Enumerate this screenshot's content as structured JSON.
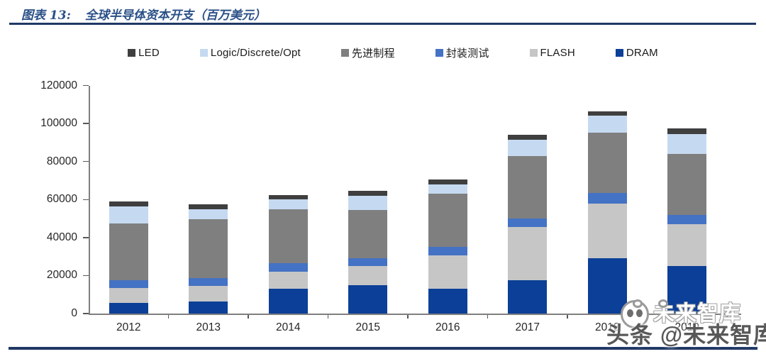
{
  "header": {
    "figure_label": "图表 13:",
    "title": "全球半导体资本开支（百万美元）"
  },
  "watermark": {
    "main_text": "头条 @未来智库",
    "ghost_text": "未来智库",
    "logo": "panda-avatar-icon",
    "text_color": "#585858"
  },
  "colors": {
    "rule": "#1f3864",
    "title_text": "#2a5087",
    "axis": "#7f7f7f",
    "label_text": "#262626"
  },
  "chart_data": {
    "type": "bar",
    "stacked": true,
    "title": "全球半导体资本开支（百万美元）",
    "xlabel": "",
    "ylabel": "",
    "categories": [
      "2012",
      "2013",
      "2014",
      "2015",
      "2016",
      "2017",
      "2018",
      "2019"
    ],
    "series": [
      {
        "name": "LED",
        "color": "#3f3f3f",
        "values": [
          2500,
          2500,
          2500,
          2500,
          2500,
          2500,
          2500,
          3000
        ]
      },
      {
        "name": "Logic/Discrete/Opt",
        "color": "#c5d9f1",
        "values": [
          9000,
          5500,
          5000,
          7500,
          5000,
          8500,
          9000,
          10500
        ]
      },
      {
        "name": "先进制程",
        "color": "#7f7f7f",
        "values": [
          30000,
          31000,
          28500,
          25500,
          28000,
          33000,
          31500,
          32000
        ]
      },
      {
        "name": "封装测试",
        "color": "#4472c4",
        "values": [
          4000,
          4000,
          4500,
          4000,
          4500,
          4500,
          5500,
          5000
        ]
      },
      {
        "name": "FLASH",
        "color": "#c6c6c6",
        "values": [
          8000,
          8000,
          9000,
          10000,
          17500,
          28000,
          29000,
          22000
        ]
      },
      {
        "name": "DRAM",
        "color": "#0c3f97",
        "values": [
          5500,
          6500,
          13000,
          15000,
          13000,
          17500,
          29000,
          25000
        ]
      }
    ],
    "stack_order_bottom_to_top": [
      "DRAM",
      "FLASH",
      "封装测试",
      "先进制程",
      "Logic/Discrete/Opt",
      "LED"
    ],
    "totals": [
      59000,
      57500,
      62500,
      64500,
      70500,
      94000,
      106500,
      97500
    ],
    "ylim": [
      0,
      120000
    ],
    "ytick_step": 20000,
    "ytick_labels": [
      "0",
      "20000",
      "40000",
      "60000",
      "80000",
      "100000",
      "120000"
    ],
    "grid": false,
    "legend_position": "top"
  }
}
